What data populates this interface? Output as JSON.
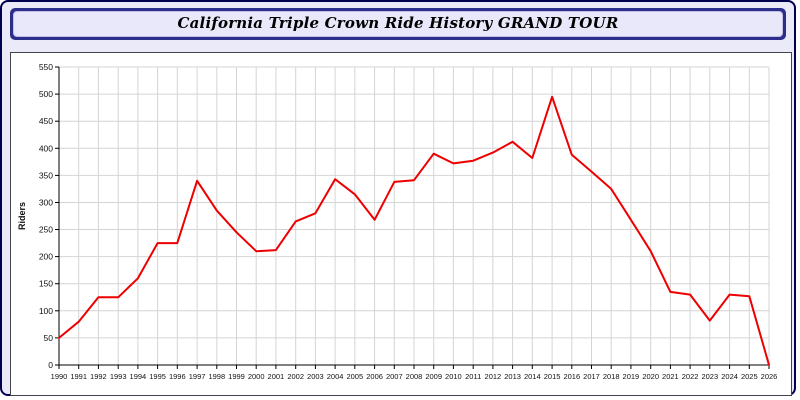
{
  "window": {
    "title": "California Triple Crown Ride History GRAND TOUR"
  },
  "colors": {
    "page_background": "#eaeaf8",
    "frame_border": "#000050",
    "title_bar": "#2d2d8c",
    "title_box": "#e8e8fa",
    "line": "#ee0000",
    "grid": "#d4d4d4",
    "axis": "#000000"
  },
  "chart_data": {
    "type": "line",
    "title": "California Triple Crown Ride History GRAND TOUR",
    "xlabel": "",
    "ylabel": "Riders",
    "ylim": [
      0,
      550
    ],
    "ytick_step": 50,
    "grid": true,
    "legend_position": "none",
    "line_color": "#ee0000",
    "x": [
      1990,
      1991,
      1992,
      1993,
      1994,
      1995,
      1996,
      1997,
      1998,
      1999,
      2000,
      2001,
      2002,
      2003,
      2004,
      2005,
      2006,
      2007,
      2008,
      2009,
      2010,
      2011,
      2012,
      2013,
      2014,
      2015,
      2016,
      2017,
      2018,
      2019,
      2020,
      2021,
      2022,
      2023,
      2024,
      2025,
      2026
    ],
    "series": [
      {
        "name": "Riders",
        "values": [
          50,
          80,
          125,
          125,
          160,
          225,
          225,
          340,
          285,
          245,
          210,
          212,
          265,
          280,
          343,
          315,
          268,
          338,
          341,
          390,
          372,
          377,
          392,
          412,
          382,
          495,
          388,
          357,
          325,
          268,
          210,
          135,
          130,
          82,
          130,
          127,
          0
        ]
      }
    ]
  }
}
